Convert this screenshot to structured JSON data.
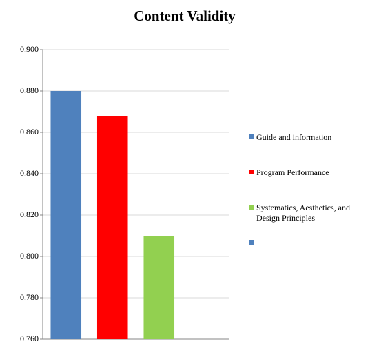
{
  "chart_data": {
    "type": "bar",
    "title": "Content Validity",
    "categories": [
      "Guide and information",
      "Program Performance",
      "Systematics, Aesthetics, and Design Principles",
      null
    ],
    "values": [
      0.88,
      0.868,
      0.81,
      null
    ],
    "colors": [
      "#4f81bd",
      "#ff0000",
      "#92d050",
      "#4f81bd"
    ],
    "ylim": [
      0.76,
      0.9
    ],
    "yticks": [
      {
        "value": 0.76,
        "label": "0.760"
      },
      {
        "value": 0.78,
        "label": "0.780"
      },
      {
        "value": 0.8,
        "label": "0.800"
      },
      {
        "value": 0.82,
        "label": "0.820"
      },
      {
        "value": 0.84,
        "label": "0.840"
      },
      {
        "value": 0.86,
        "label": "0.860"
      },
      {
        "value": 0.88,
        "label": "0.880"
      },
      {
        "value": 0.9,
        "label": "0.900"
      }
    ],
    "grid": true,
    "legend": "right"
  }
}
